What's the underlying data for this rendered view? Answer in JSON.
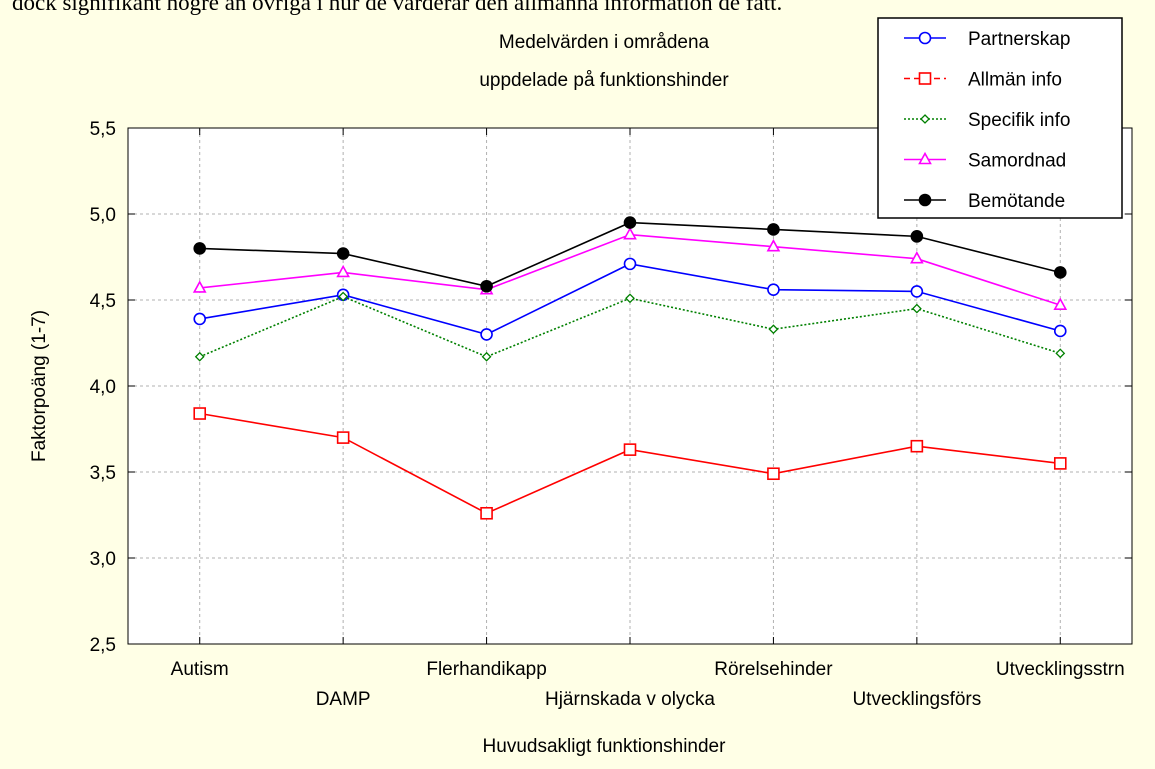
{
  "header_text": "dock signifikant högre än övriga i hur de värderar den allmänna information de fått.",
  "chart_data": {
    "type": "line",
    "title": "Medelvärden i områdena",
    "subtitle": "uppdelade på funktionshinder",
    "x_label": "Huvudsakligt funktionshinder",
    "y_label": "Faktorpoäng (1-7)",
    "categories": [
      "Autism",
      "DAMP",
      "Flerhandikapp",
      "Hjärnskada v olycka",
      "Rörelsehinder",
      "Utvecklingsförs",
      "Utvecklingsstrn"
    ],
    "ylim": [
      2.5,
      5.5
    ],
    "yticks": [
      {
        "value": 2.5,
        "label": "2,5"
      },
      {
        "value": 3,
        "label": "3,0"
      },
      {
        "value": 3.5,
        "label": "3,5"
      },
      {
        "value": 4,
        "label": "4,0"
      },
      {
        "value": 4.5,
        "label": "4,5"
      },
      {
        "value": 5,
        "label": "5,0"
      },
      {
        "value": 5.5,
        "label": "5,5"
      }
    ],
    "grid": true,
    "legend": "top-right",
    "series": [
      {
        "name": "Partnerskap",
        "color": "#0000ff",
        "marker": "circle",
        "dashed": false,
        "values": [
          4.39,
          4.53,
          4.3,
          4.71,
          4.56,
          4.55,
          4.32
        ]
      },
      {
        "name": "Allmän info",
        "color": "#ff0000",
        "marker": "square",
        "dashed": true,
        "values": [
          3.84,
          3.7,
          3.26,
          3.63,
          3.49,
          3.65,
          3.55
        ]
      },
      {
        "name": "Specifik info",
        "color": "#008000",
        "marker": "diamond",
        "dashed": true,
        "values": [
          4.17,
          4.52,
          4.17,
          4.51,
          4.33,
          4.45,
          4.19
        ]
      },
      {
        "name": "Samordnad",
        "color": "#ff00ff",
        "marker": "triangle",
        "dashed": false,
        "values": [
          4.57,
          4.66,
          4.56,
          4.88,
          4.81,
          4.74,
          4.47
        ]
      },
      {
        "name": "Bemötande",
        "color": "#000000",
        "marker": "filled-circle",
        "dashed": false,
        "values": [
          4.8,
          4.77,
          4.58,
          4.95,
          4.91,
          4.87,
          4.66
        ]
      }
    ]
  }
}
